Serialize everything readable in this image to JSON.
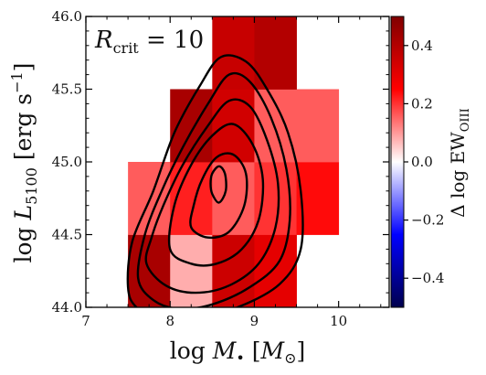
{
  "chart_data": {
    "type": "heatmap",
    "annotation": {
      "symbol": "R",
      "subscript": "crit",
      "rest": " = 10"
    },
    "xlabel": {
      "pre": "log ",
      "symbol": "M",
      "sub": "•",
      "unit_open": " [",
      "unit_sym": "M",
      "unit_sub": "⊙",
      "unit_close": "]"
    },
    "ylabel": {
      "pre": "log ",
      "symbol": "L",
      "sub": "5100",
      "unit": " [erg s",
      "sup": "−1",
      "unit_close": "]"
    },
    "colorbar_label": {
      "pre": "Δ log EW",
      "sub": "OIII"
    },
    "xlim": [
      7,
      10.6
    ],
    "ylim": [
      44.0,
      46.0
    ],
    "xticks": [
      "7",
      "8",
      "9",
      "10"
    ],
    "xtick_values": [
      7,
      8,
      9,
      10
    ],
    "yticks": [
      "44.0",
      "44.5",
      "45.0",
      "45.5",
      "46.0"
    ],
    "ytick_values": [
      44.0,
      44.5,
      45.0,
      45.5,
      46.0
    ],
    "color_range": [
      -0.5,
      0.5
    ],
    "colorbar_ticks": [
      "−0.4",
      "−0.2",
      "0.0",
      "0.2",
      "0.4"
    ],
    "colorbar_tick_values": [
      -0.4,
      -0.2,
      0.0,
      0.2,
      0.4
    ],
    "colormap": "seismic",
    "cell_size": {
      "dx": 0.5,
      "dy": 0.5
    },
    "cells": [
      {
        "x": 7.5,
        "y": 44.0,
        "value": 0.42
      },
      {
        "x": 8.0,
        "y": 44.0,
        "value": 0.08
      },
      {
        "x": 8.5,
        "y": 44.0,
        "value": 0.35
      },
      {
        "x": 9.0,
        "y": 44.0,
        "value": 0.3
      },
      {
        "x": 7.5,
        "y": 44.5,
        "value": 0.16
      },
      {
        "x": 8.0,
        "y": 44.5,
        "value": 0.22
      },
      {
        "x": 8.5,
        "y": 44.5,
        "value": 0.16
      },
      {
        "x": 9.0,
        "y": 44.5,
        "value": 0.2
      },
      {
        "x": 9.5,
        "y": 44.5,
        "value": 0.24
      },
      {
        "x": 8.0,
        "y": 45.0,
        "value": 0.42
      },
      {
        "x": 8.5,
        "y": 45.0,
        "value": 0.34
      },
      {
        "x": 9.0,
        "y": 45.0,
        "value": 0.16
      },
      {
        "x": 9.5,
        "y": 45.0,
        "value": 0.16
      },
      {
        "x": 8.5,
        "y": 45.5,
        "value": 0.36
      },
      {
        "x": 9.0,
        "y": 45.5,
        "value": 0.4
      }
    ],
    "contours": [
      [
        [
          7.5,
          44.14
        ],
        [
          7.6,
          44.0
        ],
        [
          7.9,
          43.9
        ],
        [
          8.3,
          43.93
        ],
        [
          8.8,
          44.0
        ],
        [
          9.3,
          44.16
        ],
        [
          9.55,
          44.4
        ],
        [
          9.55,
          44.8
        ],
        [
          9.4,
          45.2
        ],
        [
          9.15,
          45.5
        ],
        [
          8.9,
          45.69
        ],
        [
          8.6,
          45.72
        ],
        [
          8.35,
          45.52
        ],
        [
          8.05,
          45.2
        ],
        [
          7.8,
          44.8
        ],
        [
          7.55,
          44.45
        ]
      ],
      [
        [
          7.62,
          44.2
        ],
        [
          7.8,
          44.05
        ],
        [
          8.1,
          43.99
        ],
        [
          8.5,
          44.02
        ],
        [
          8.95,
          44.14
        ],
        [
          9.3,
          44.32
        ],
        [
          9.42,
          44.6
        ],
        [
          9.38,
          44.95
        ],
        [
          9.2,
          45.3
        ],
        [
          8.95,
          45.55
        ],
        [
          8.7,
          45.6
        ],
        [
          8.45,
          45.4
        ],
        [
          8.15,
          45.1
        ],
        [
          7.9,
          44.8
        ],
        [
          7.7,
          44.5
        ]
      ],
      [
        [
          7.72,
          44.3
        ],
        [
          7.95,
          44.15
        ],
        [
          8.3,
          44.1
        ],
        [
          8.7,
          44.15
        ],
        [
          9.05,
          44.3
        ],
        [
          9.25,
          44.55
        ],
        [
          9.28,
          44.85
        ],
        [
          9.15,
          45.15
        ],
        [
          8.95,
          45.38
        ],
        [
          8.7,
          45.42
        ],
        [
          8.45,
          45.25
        ],
        [
          8.15,
          44.98
        ],
        [
          7.92,
          44.7
        ],
        [
          7.78,
          44.48
        ]
      ],
      [
        [
          8.0,
          44.4
        ],
        [
          8.25,
          44.3
        ],
        [
          8.55,
          44.3
        ],
        [
          8.85,
          44.4
        ],
        [
          9.05,
          44.6
        ],
        [
          9.1,
          44.88
        ],
        [
          8.98,
          45.12
        ],
        [
          8.75,
          45.26
        ],
        [
          8.5,
          45.18
        ],
        [
          8.25,
          44.98
        ],
        [
          8.05,
          44.7
        ]
      ],
      [
        [
          8.25,
          44.55
        ],
        [
          8.45,
          44.48
        ],
        [
          8.7,
          44.52
        ],
        [
          8.88,
          44.7
        ],
        [
          8.9,
          44.92
        ],
        [
          8.75,
          45.05
        ],
        [
          8.55,
          45.03
        ],
        [
          8.38,
          44.88
        ],
        [
          8.28,
          44.7
        ]
      ],
      [
        [
          8.5,
          44.78
        ],
        [
          8.58,
          44.72
        ],
        [
          8.66,
          44.8
        ],
        [
          8.65,
          44.92
        ],
        [
          8.58,
          44.97
        ],
        [
          8.5,
          44.92
        ],
        [
          8.48,
          44.85
        ]
      ]
    ]
  }
}
